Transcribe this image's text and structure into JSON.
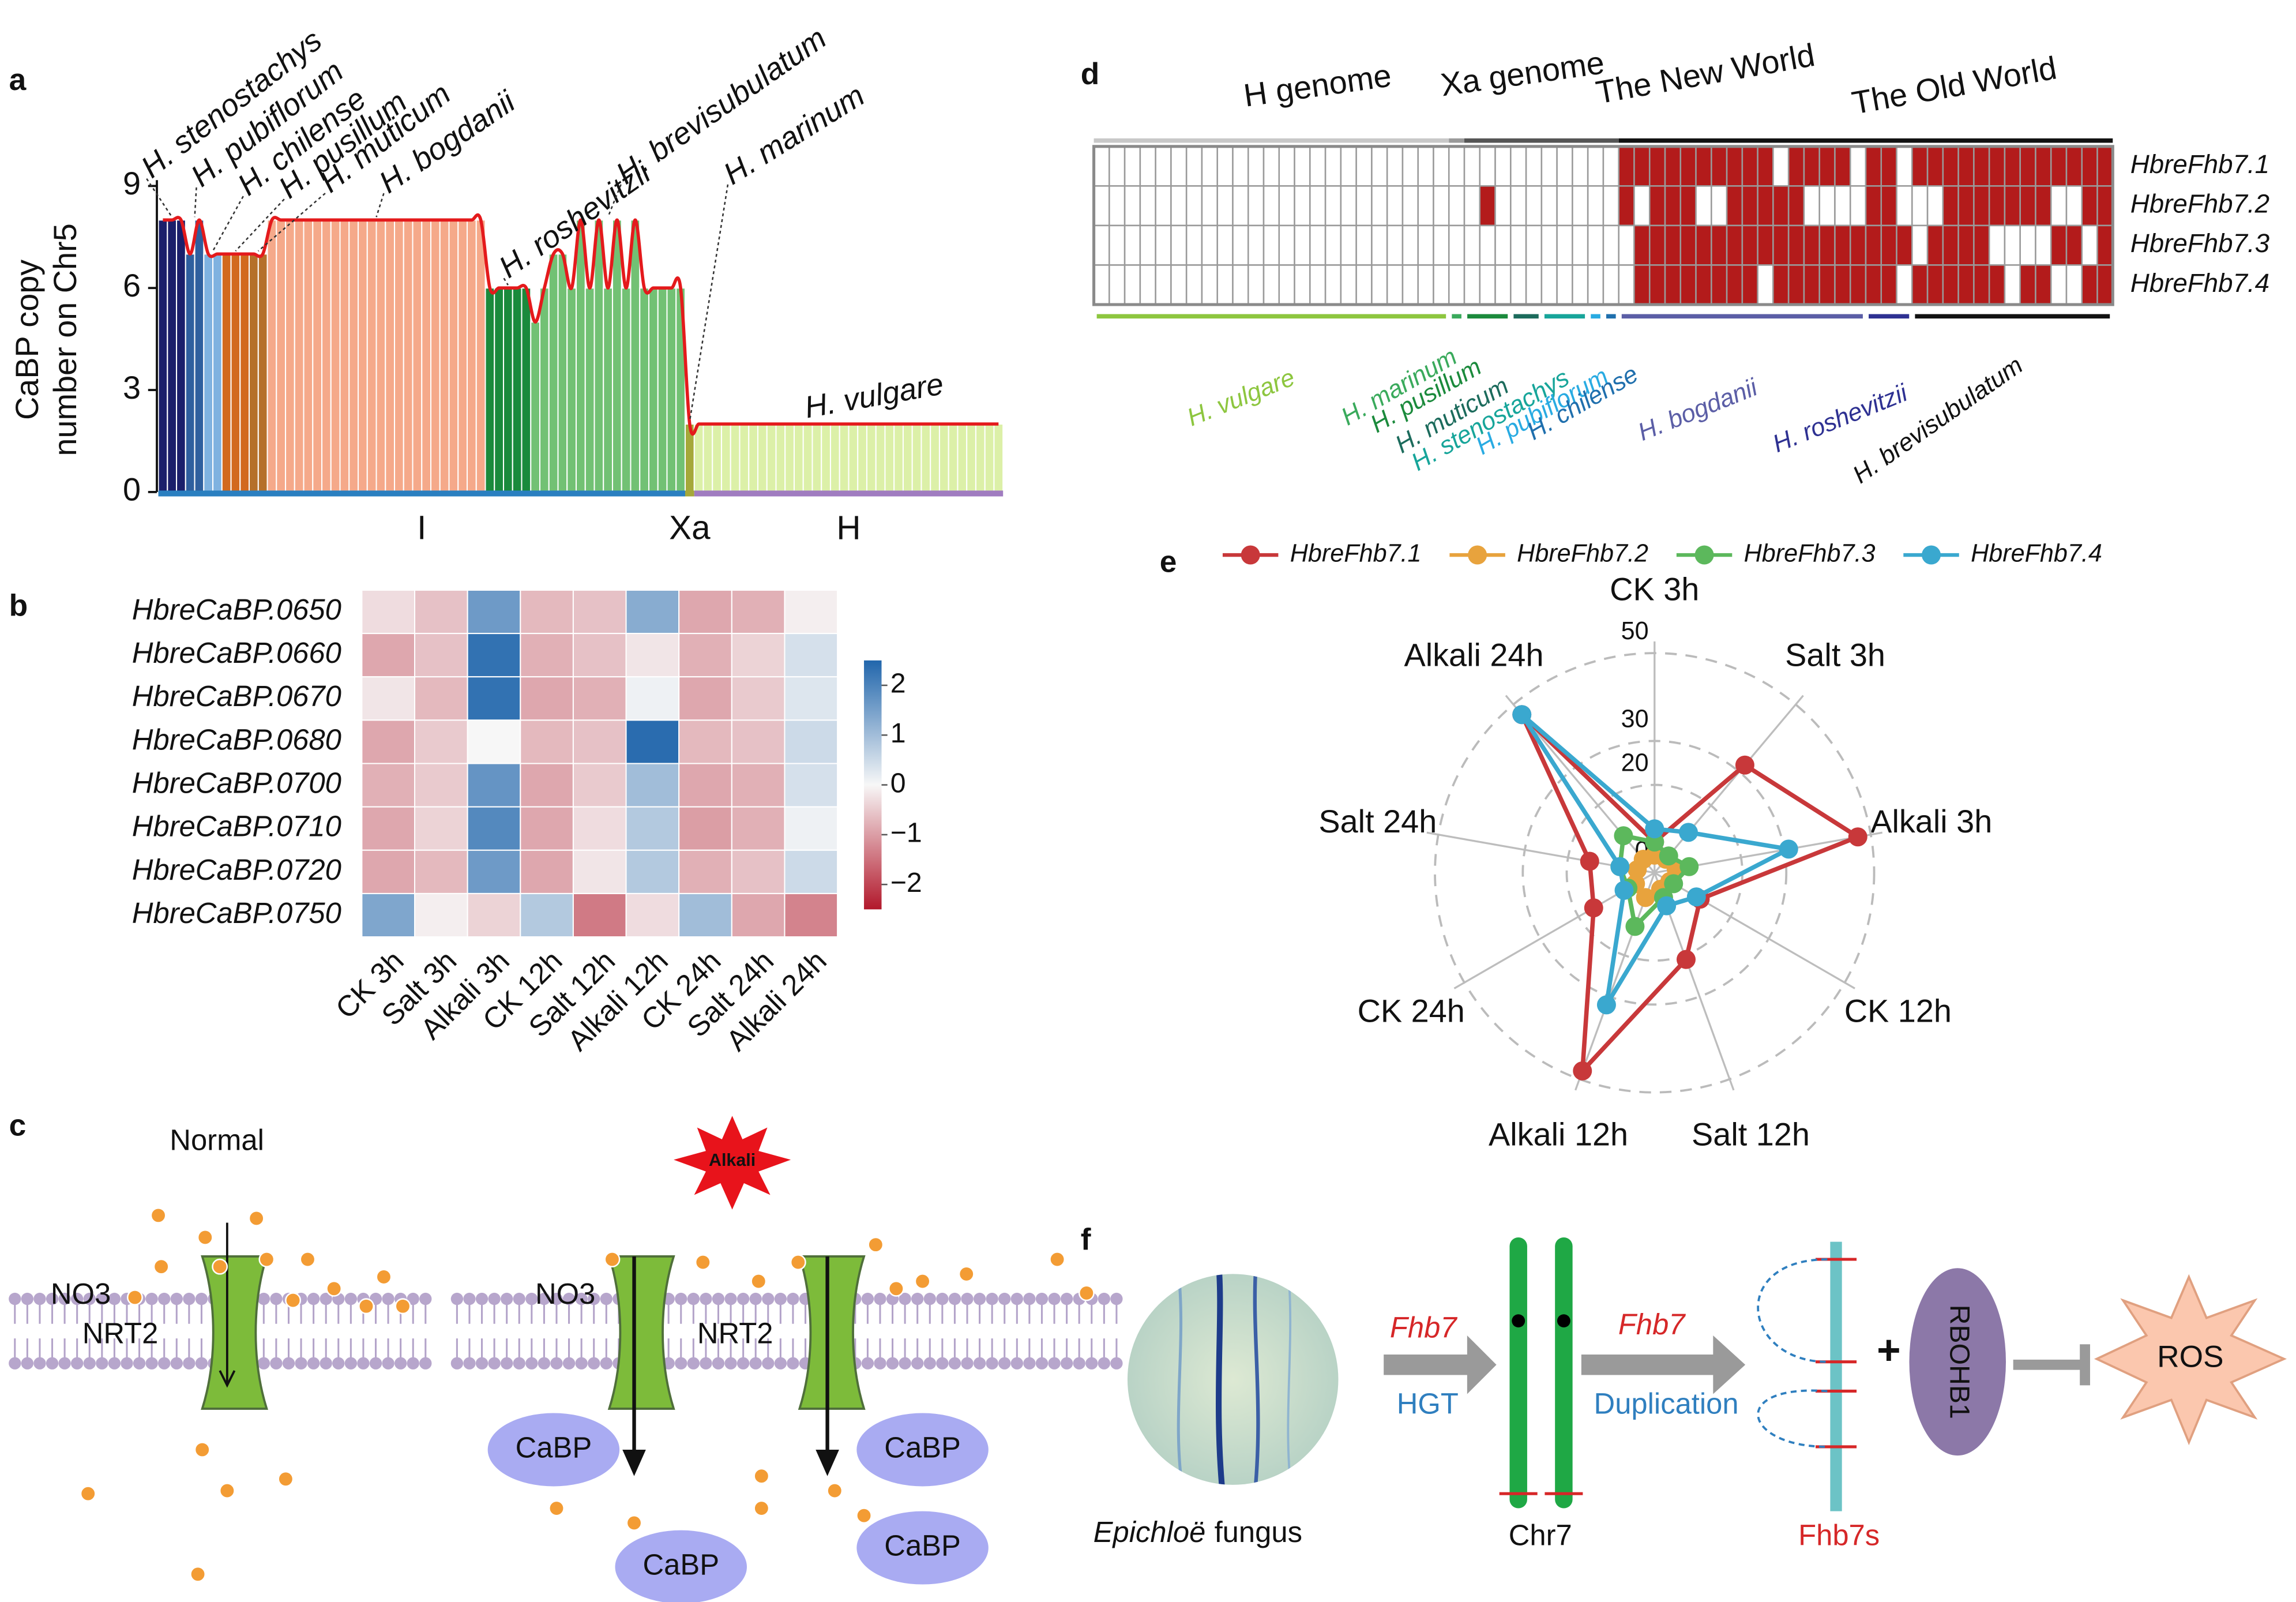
{
  "chart_data": [
    {
      "panel": "a",
      "type": "bar",
      "ylabel": [
        "CaBP copy",
        "number on Chr5"
      ],
      "ylim": [
        0,
        9
      ],
      "yticks": [
        0,
        3,
        6,
        9
      ],
      "curve_color": "#e41a1c",
      "series": [
        {
          "name": "H. stenostachys",
          "color": "#1b1f6b",
          "group": "I",
          "values": [
            8,
            8,
            8
          ]
        },
        {
          "name": "H. pubiflorum",
          "color": "#2f5f9e",
          "group": "I",
          "values": [
            7,
            8
          ]
        },
        {
          "name": "H. chilense",
          "color": "#7fb2e0",
          "group": "I",
          "values": [
            7,
            7
          ]
        },
        {
          "name": "H. pusillum",
          "color": "#d2691e",
          "group": "I",
          "values": [
            7,
            7,
            7
          ]
        },
        {
          "name": "H. muticum",
          "color": "#b5702a",
          "group": "I",
          "values": [
            7,
            7
          ]
        },
        {
          "name": "H. bogdanii",
          "color": "#f5a98a",
          "group": "I",
          "values": [
            8,
            8,
            8,
            8,
            8,
            8,
            8,
            8,
            8,
            8,
            8,
            8,
            8,
            8,
            8,
            8,
            8,
            8,
            8,
            8,
            8,
            8,
            8,
            8
          ]
        },
        {
          "name": "H. roshevitzii",
          "color": "#1a8a3c",
          "group": "I",
          "values": [
            6,
            6,
            6,
            6,
            6
          ]
        },
        {
          "name": "H. brevisubulatum",
          "color": "#72c174",
          "group": "I",
          "values": [
            5,
            6,
            7,
            7,
            6,
            8,
            6,
            8,
            6,
            8,
            6,
            8,
            6,
            6,
            6,
            6,
            6
          ]
        },
        {
          "name": "H. marinum",
          "color": "#a5a83a",
          "group": "Xa",
          "values": [
            2
          ]
        },
        {
          "name": "H. vulgare",
          "color": "#dcf0a8",
          "group": "H",
          "values": [
            2,
            2,
            2,
            2,
            2,
            2,
            2,
            2,
            2,
            2,
            2,
            2,
            2,
            2,
            2,
            2,
            2,
            2,
            2,
            2,
            2,
            2,
            2,
            2,
            2,
            2,
            2,
            2,
            2,
            2,
            2,
            2,
            2,
            2
          ]
        }
      ],
      "groups": [
        {
          "label": "I",
          "color": "#2a7fc0"
        },
        {
          "label": "Xa",
          "color": "#a5a83a"
        },
        {
          "label": "H",
          "color": "#a07cc0"
        }
      ]
    },
    {
      "panel": "b",
      "type": "heatmap",
      "rows": [
        "HbreCaBP.0650",
        "HbreCaBP.0660",
        "HbreCaBP.0670",
        "HbreCaBP.0680",
        "HbreCaBP.0700",
        "HbreCaBP.0710",
        "HbreCaBP.0720",
        "HbreCaBP.0750"
      ],
      "columns": [
        "CK 3h",
        "Salt 3h",
        "Alkali 3h",
        "CK 12h",
        "Salt 12h",
        "Alkali 12h",
        "CK 24h",
        "Salt 24h",
        "Alkali 24h"
      ],
      "values": [
        [
          -0.3,
          -0.6,
          1.6,
          -0.7,
          -0.6,
          1.3,
          -0.9,
          -0.8,
          -0.1
        ],
        [
          -0.9,
          -0.6,
          2.3,
          -0.8,
          -0.6,
          -0.2,
          -0.8,
          -0.4,
          0.4
        ],
        [
          -0.2,
          -0.7,
          2.3,
          -0.9,
          -0.8,
          0.1,
          -0.9,
          -0.5,
          0.3
        ],
        [
          -0.9,
          -0.5,
          0.0,
          -0.7,
          -0.6,
          2.4,
          -0.7,
          -0.6,
          0.5
        ],
        [
          -0.8,
          -0.5,
          1.7,
          -0.9,
          -0.5,
          1.0,
          -0.9,
          -0.8,
          0.4
        ],
        [
          -0.9,
          -0.4,
          1.9,
          -0.9,
          -0.3,
          0.8,
          -1.0,
          -0.8,
          0.1
        ],
        [
          -0.9,
          -0.7,
          1.6,
          -0.9,
          -0.2,
          0.8,
          -0.8,
          -0.6,
          0.5
        ],
        [
          1.4,
          -0.1,
          -0.4,
          0.8,
          -1.4,
          -0.3,
          1.0,
          -0.9,
          -1.3
        ]
      ],
      "clim": [
        -2.5,
        2.5
      ],
      "colors": [
        "#b2182b",
        "#f7f7f7",
        "#2166ac"
      ],
      "colorbar_ticks": [
        {
          "value": -2,
          "label": "−2"
        },
        {
          "value": -1,
          "label": "−1"
        },
        0,
        1,
        2
      ]
    },
    {
      "panel": "d",
      "type": "presence-grid",
      "rows": [
        "HbreFhb7.1",
        "HbreFhb7.2",
        "HbreFhb7.3",
        "HbreFhb7.4"
      ],
      "present_color": "#b31b1b",
      "values": [
        [
          0,
          0,
          0,
          0,
          0,
          0,
          0,
          0,
          0,
          0,
          0,
          0,
          0,
          0,
          0,
          0,
          0,
          0,
          0,
          0,
          0,
          0,
          0,
          0,
          0,
          0,
          0,
          0,
          0,
          0,
          0,
          0,
          0,
          0,
          1,
          1,
          1,
          1,
          1,
          1,
          1,
          1,
          1,
          1,
          0,
          1,
          1,
          1,
          1,
          0,
          1,
          1,
          0,
          1,
          1,
          1,
          1,
          1,
          1,
          1,
          1,
          1,
          1,
          1,
          1,
          1
        ],
        [
          0,
          0,
          0,
          0,
          0,
          0,
          0,
          0,
          0,
          0,
          0,
          0,
          0,
          0,
          0,
          0,
          0,
          0,
          0,
          0,
          0,
          0,
          0,
          0,
          0,
          1,
          0,
          0,
          0,
          0,
          0,
          0,
          0,
          0,
          1,
          0,
          1,
          1,
          1,
          0,
          0,
          1,
          1,
          1,
          1,
          1,
          0,
          0,
          0,
          0,
          1,
          1,
          0,
          0,
          0,
          1,
          1,
          1,
          1,
          1,
          1,
          1,
          0,
          0,
          1,
          1
        ],
        [
          0,
          0,
          0,
          0,
          0,
          0,
          0,
          0,
          0,
          0,
          0,
          0,
          0,
          0,
          0,
          0,
          0,
          0,
          0,
          0,
          0,
          0,
          0,
          0,
          0,
          0,
          0,
          0,
          0,
          0,
          0,
          0,
          0,
          0,
          0,
          1,
          1,
          1,
          1,
          1,
          1,
          1,
          1,
          1,
          1,
          1,
          1,
          1,
          1,
          1,
          1,
          1,
          1,
          0,
          1,
          1,
          1,
          1,
          0,
          0,
          0,
          0,
          1,
          1,
          0,
          1
        ],
        [
          0,
          0,
          0,
          0,
          0,
          0,
          0,
          0,
          0,
          0,
          0,
          0,
          0,
          0,
          0,
          0,
          0,
          0,
          0,
          0,
          0,
          0,
          0,
          0,
          0,
          0,
          0,
          0,
          0,
          0,
          0,
          0,
          0,
          0,
          0,
          1,
          1,
          1,
          1,
          1,
          1,
          1,
          1,
          0,
          1,
          1,
          1,
          1,
          1,
          1,
          1,
          1,
          0,
          1,
          1,
          1,
          1,
          1,
          1,
          0,
          1,
          1,
          0,
          0,
          1,
          1
        ]
      ],
      "top_groups": [
        {
          "label": "H genome",
          "color": "#c8c8c8"
        },
        {
          "label": "Xa genome",
          "color": "#9a9a9a"
        },
        {
          "label": "The New World",
          "color": "#555555"
        },
        {
          "label": "The Old World",
          "color": "#111111"
        }
      ],
      "species": [
        {
          "name": "H. vulgare",
          "color": "#8dc63f"
        },
        {
          "name": "H. marinum",
          "color": "#3aaa5c"
        },
        {
          "name": "H. pusillum",
          "color": "#1b8a3c"
        },
        {
          "name": "H. muticum",
          "color": "#1c6b5c"
        },
        {
          "name": "H. stenostachys",
          "color": "#17a59a"
        },
        {
          "name": "H. pubiflorum",
          "color": "#29abe2"
        },
        {
          "name": "H. chilense",
          "color": "#1f6fad"
        },
        {
          "name": "H. bogdanii",
          "color": "#5b5ea6"
        },
        {
          "name": "H. roshevitzii",
          "color": "#2e3192"
        },
        {
          "name": "H. brevisubulatum",
          "color": "#111111"
        }
      ]
    },
    {
      "panel": "e",
      "type": "radar",
      "categories": [
        "CK 3h",
        "Salt 3h",
        "Alkali 3h",
        "CK 12h",
        "Salt 12h",
        "Alkali 12h",
        "CK 24h",
        "Salt 24h",
        "Alkali 24h"
      ],
      "rlim": [
        0,
        50
      ],
      "rticks": [
        0,
        20,
        30,
        50
      ],
      "series": [
        {
          "name": "HbreFhb7.1",
          "color": "#c8383a",
          "values": [
            7,
            32,
            47,
            12,
            21,
            48,
            16,
            15,
            47
          ]
        },
        {
          "name": "HbreFhb7.2",
          "color": "#e8a33d",
          "values": [
            4,
            4,
            5,
            4,
            4,
            6,
            5,
            4,
            4
          ]
        },
        {
          "name": "HbreFhb7.3",
          "color": "#5cb85c",
          "values": [
            7,
            5,
            8,
            5,
            6,
            13,
            7,
            8,
            11
          ]
        },
        {
          "name": "HbreFhb7.4",
          "color": "#3aa8cf",
          "values": [
            10,
            12,
            31,
            11,
            8,
            32,
            8,
            8,
            47
          ]
        }
      ]
    }
  ],
  "diagram_c": {
    "panel": "c",
    "left_title": "Normal",
    "stress": "Alkali",
    "left": {
      "ion": "NO3",
      "transporter": "NRT2"
    },
    "right": {
      "ion": "NO3",
      "transporter": "NRT2"
    },
    "proteins": [
      "CaBP",
      "CaBP",
      "CaBP",
      "CaBP"
    ]
  },
  "diagram_f": {
    "panel": "f",
    "source_italic": "Epichloë",
    "source_rest": "fungus",
    "gene": "Fhb7",
    "transfer": "HGT",
    "chromosome": "Chr7",
    "gene_2": "Fhb7",
    "event": "Duplication",
    "copies": "Fhb7s",
    "plus": "+",
    "partner": "RBOHB1",
    "target": "ROS"
  }
}
